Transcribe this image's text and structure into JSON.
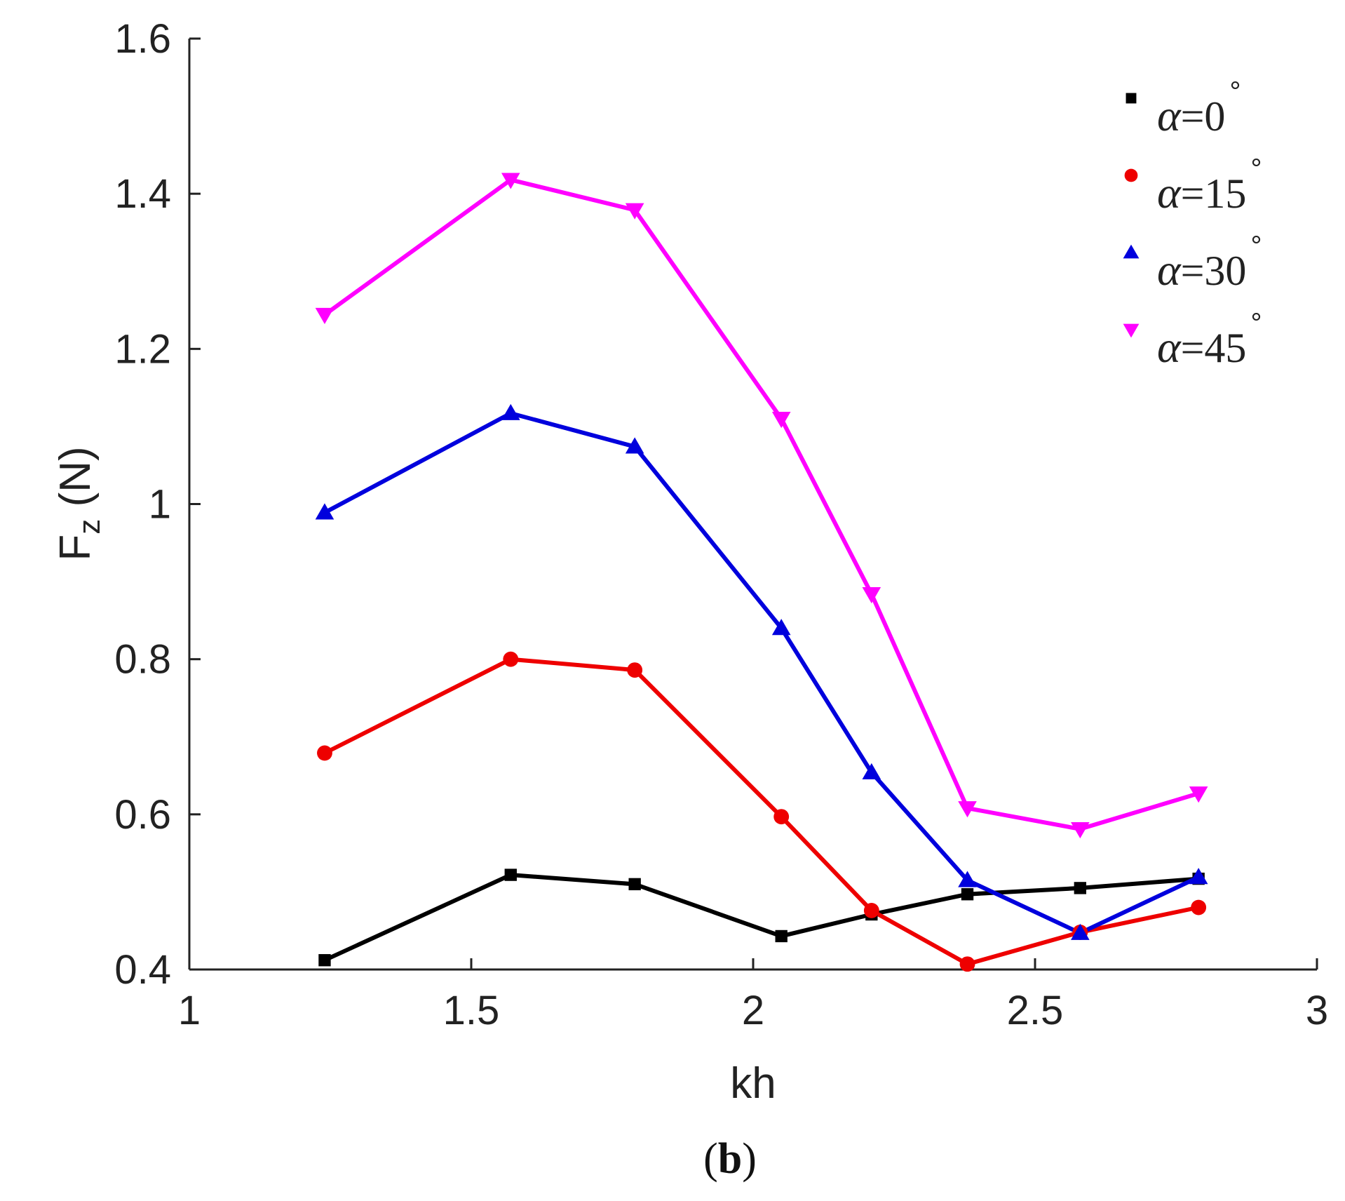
{
  "chart_data": {
    "type": "line",
    "title": "",
    "xlabel": "kh",
    "ylabel_main": "F",
    "ylabel_sub": "z",
    "ylabel_unit": " (N)",
    "xlim": [
      1,
      3
    ],
    "ylim": [
      0.4,
      1.6
    ],
    "xticks": [
      "1",
      "1.5",
      "2",
      "2.5",
      "3"
    ],
    "yticks": [
      "0.4",
      "0.6",
      "0.8",
      "1",
      "1.2",
      "1.4",
      "1.6"
    ],
    "grid": false,
    "legend_position": "top-right",
    "x": [
      1.24,
      1.57,
      1.79,
      2.05,
      2.21,
      2.38,
      2.58,
      2.79
    ],
    "series": [
      {
        "name": "α=0°",
        "symbol": "α",
        "label_value": "=0",
        "degree": "°",
        "marker": "square",
        "color": "#000000",
        "values": [
          0.412,
          0.522,
          0.51,
          0.443,
          0.471,
          0.497,
          0.505,
          0.517
        ]
      },
      {
        "name": "α=15°",
        "symbol": "α",
        "label_value": "=15",
        "degree": "°",
        "marker": "circle",
        "color": "#ee0000",
        "values": [
          0.679,
          0.8,
          0.786,
          0.597,
          0.476,
          0.407,
          0.448,
          0.48
        ]
      },
      {
        "name": "α=30°",
        "symbol": "α",
        "label_value": "=30",
        "degree": "°",
        "marker": "triangle-up",
        "color": "#0000dd",
        "values": [
          0.989,
          1.117,
          1.074,
          0.84,
          0.654,
          0.515,
          0.447,
          0.519
        ]
      },
      {
        "name": "α=45°",
        "symbol": "α",
        "label_value": "=45",
        "degree": "°",
        "marker": "triangle-down",
        "color": "#ff00ff",
        "values": [
          1.244,
          1.418,
          1.379,
          1.11,
          0.884,
          0.608,
          0.581,
          0.627
        ]
      }
    ]
  },
  "caption": {
    "open": "(",
    "letter": "b",
    "close": ")"
  }
}
